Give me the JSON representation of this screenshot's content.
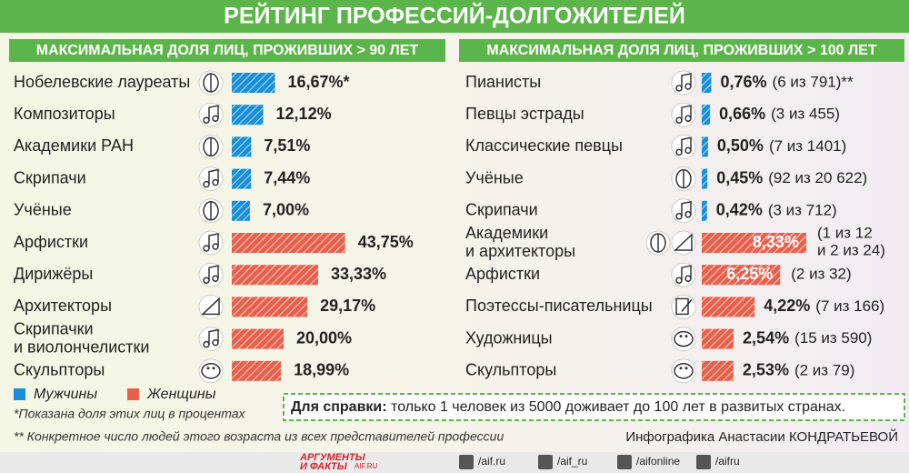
{
  "title": "РЕЙТИНГ ПРОФЕССИЙ-ДОЛГОЖИТЕЛЕЙ",
  "chart_data": [
    {
      "type": "hbar",
      "title": "МАКСИМАЛЬНАЯ ДОЛЯ ЛИЦ, ПРОЖИВШИХ > 90 ЛЕТ",
      "categories": [
        "Нобелевские лауреаты",
        "Композиторы",
        "Академики РАН",
        "Скрипачи",
        "Учёные",
        "Арфистки",
        "Дирижёры",
        "Архитекторы",
        "Скрипачки\nи виолончелистки",
        "Скульпторы"
      ],
      "series": [
        {
          "name": "Мужчины",
          "color": "#1a8fd8",
          "values": [
            16.67,
            12.12,
            7.51,
            7.44,
            7.0,
            null,
            null,
            null,
            null,
            null
          ],
          "value_labels": [
            "16,67%*",
            "12,12%",
            "7,51%",
            "7,44%",
            "7,00%",
            null,
            null,
            null,
            null,
            null
          ]
        },
        {
          "name": "Женщины",
          "color": "#e8604c",
          "values": [
            null,
            null,
            null,
            null,
            null,
            43.75,
            33.33,
            29.17,
            20.0,
            18.99
          ],
          "value_labels": [
            null,
            null,
            null,
            null,
            null,
            "43,75%",
            "33,33%",
            "29,17%",
            "20,00%",
            "18,99%"
          ]
        }
      ]
    },
    {
      "type": "hbar",
      "title": "МАКСИМАЛЬНАЯ ДОЛЯ ЛИЦ, ПРОЖИВШИХ > 100 ЛЕТ",
      "categories": [
        "Пианисты",
        "Певцы эстрады",
        "Классические певцы",
        "Учёные",
        "Скрипачи",
        "Академики\nи архитекторы",
        "Арфистки",
        "Поэтессы-писательницы",
        "Художницы",
        "Скульпторы"
      ],
      "series": [
        {
          "name": "Мужчины",
          "color": "#1a8fd8",
          "values": [
            0.76,
            0.66,
            0.5,
            0.45,
            0.42,
            null,
            null,
            null,
            null,
            null
          ],
          "value_labels": [
            "0,76%",
            "0,66%",
            "0,50%",
            "0,45%",
            "0,42%",
            null,
            null,
            null,
            null,
            null
          ]
        },
        {
          "name": "Женщины",
          "color": "#e8604c",
          "values": [
            null,
            null,
            null,
            null,
            null,
            8.33,
            6.25,
            4.22,
            2.54,
            2.53
          ],
          "value_labels": [
            null,
            null,
            null,
            null,
            null,
            "8,33%",
            "6,25%",
            "4,22%",
            "2,54%",
            "2,53%"
          ]
        }
      ],
      "details": [
        "(6 из 791)**",
        "(3 из 455)",
        "(7 из 1401)",
        "(92 из 20 622)",
        "(3 из 712)",
        "(1 из 12\nи 2 из 24)",
        "(2 из 32)",
        "(7 из 166)",
        "(15 из 590)",
        "(2 из 79)"
      ]
    }
  ],
  "notes": [
    "*Показана доля этих лиц в процентах",
    "** Конкретное число людей этого возраста из всех представителей профессии"
  ],
  "reference": {
    "label": "Для справки:",
    "text": "только 1 человек из 5000 доживает до 100 лет в развитых странах."
  },
  "credit": "Инфографика Анастасии КОНДРАТЬЕВОЙ",
  "footer": {
    "logo": [
      "АРГУМЕНТЫ",
      "И ФАКТЫ",
      "AIF.RU"
    ],
    "social": [
      "/aif.ru",
      "/aif_ru",
      "/aifonline",
      "/aifru"
    ]
  }
}
